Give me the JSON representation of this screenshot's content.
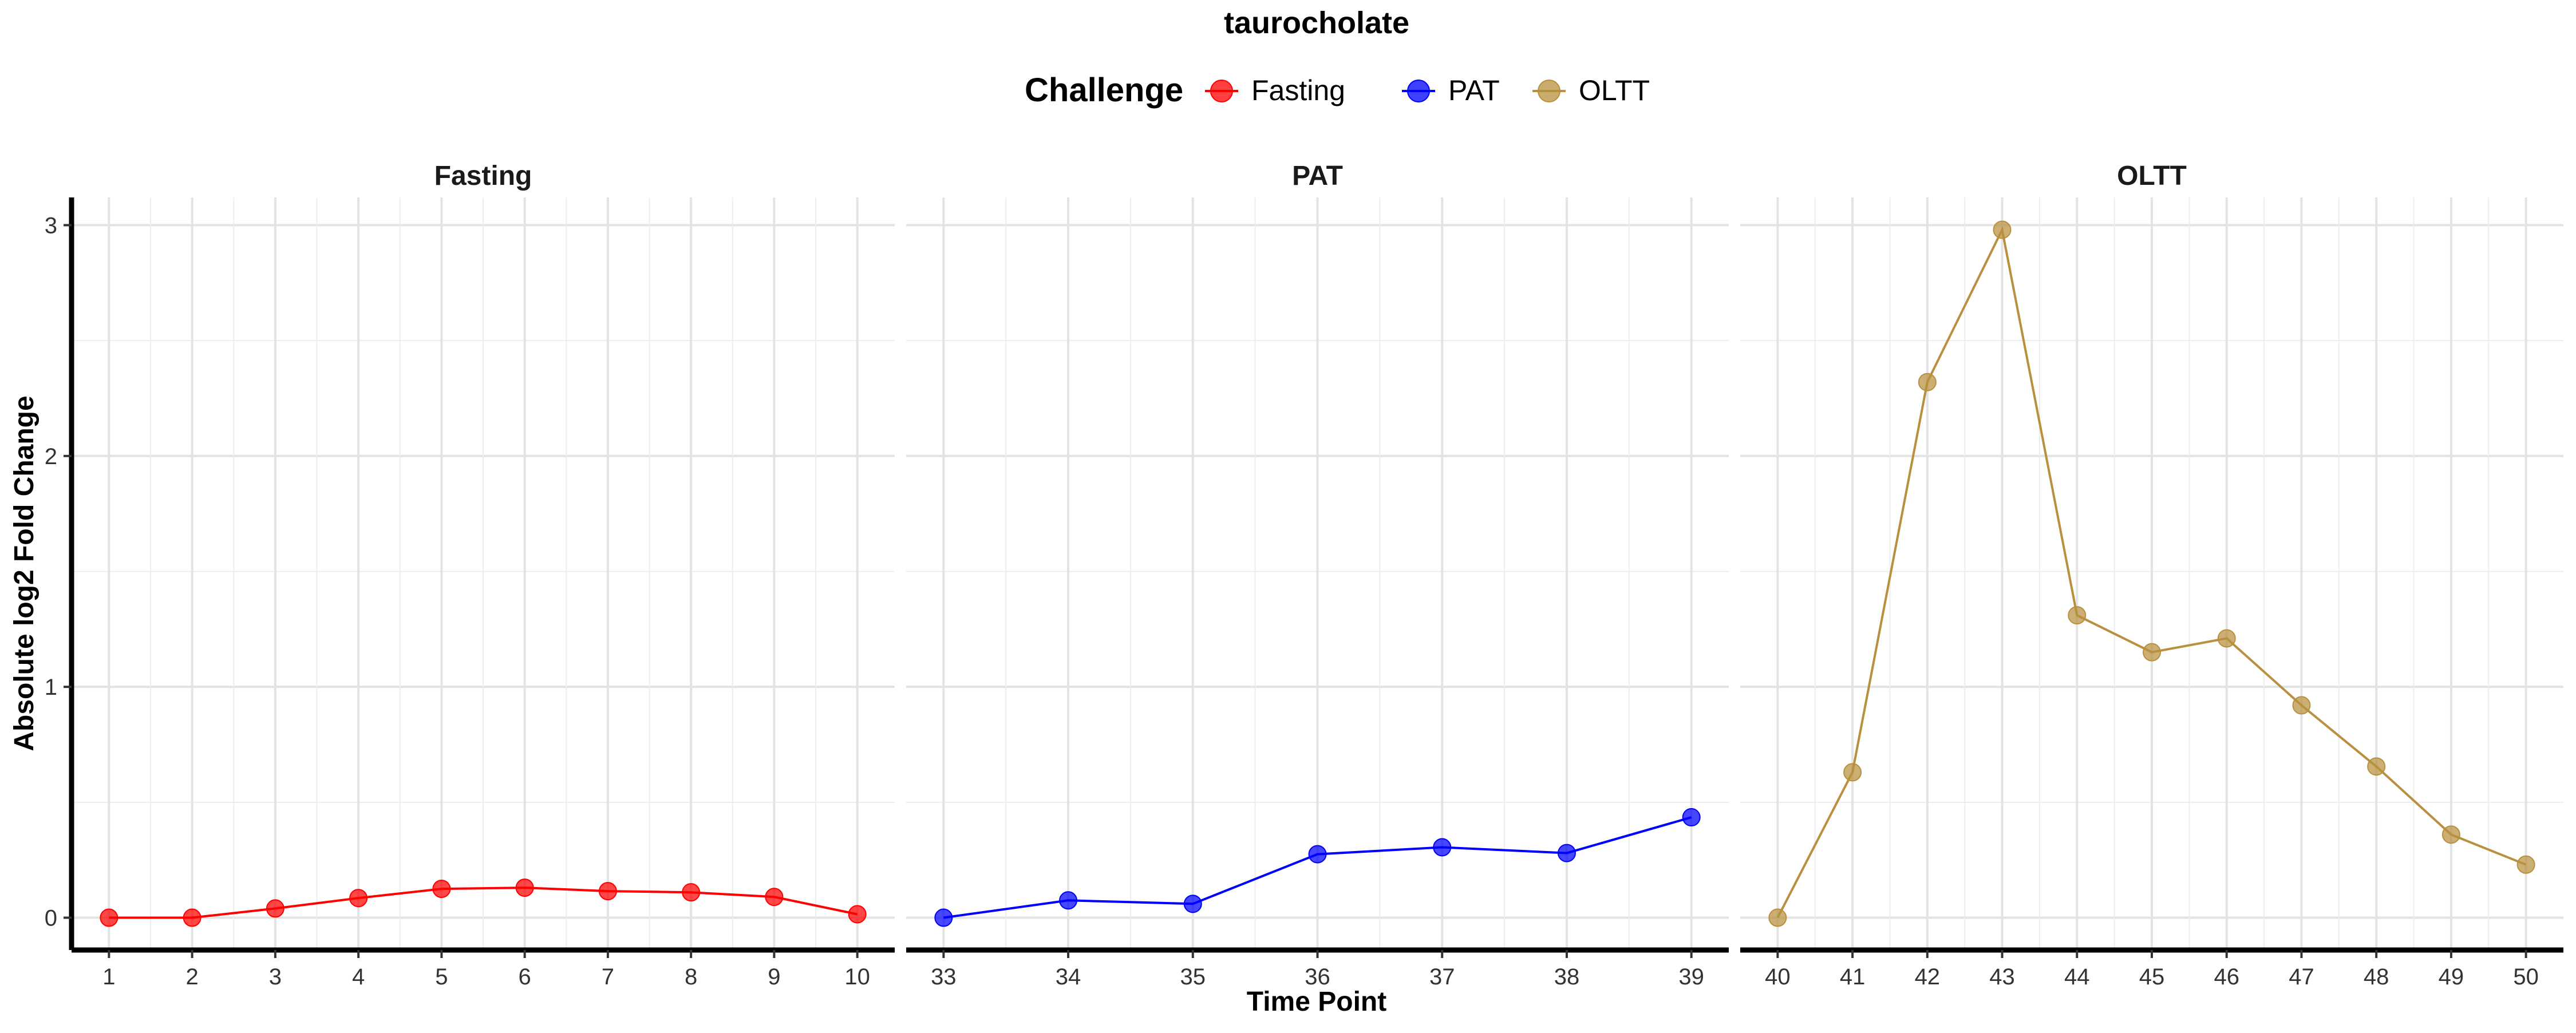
{
  "chart_data": {
    "type": "line",
    "title": "taurocholate",
    "xlabel": "Time Point",
    "ylabel": "Absolute log2 Fold Change",
    "ylim": [
      -0.14,
      3.12
    ],
    "yticks": [
      0,
      1,
      2,
      3
    ],
    "grid": true,
    "legend": {
      "title": "Challenge",
      "placement": "top",
      "entries": [
        {
          "label": "Fasting",
          "color": "#ff0000"
        },
        {
          "label": "PAT",
          "color": "#0000ff"
        },
        {
          "label": "OLTT",
          "color": "#b8903f"
        }
      ]
    },
    "panels": [
      {
        "strip": "Fasting",
        "color": "#ff0000",
        "xlim": [
          0.55,
          10.45
        ],
        "x": [
          1,
          2,
          3,
          4,
          5,
          6,
          7,
          8,
          9,
          10
        ],
        "y": [
          0.0,
          0.0,
          0.04,
          0.085,
          0.125,
          0.13,
          0.115,
          0.11,
          0.09,
          0.015
        ]
      },
      {
        "strip": "PAT",
        "color": "#0000ff",
        "xlim": [
          32.7,
          39.3
        ],
        "x": [
          33,
          34,
          35,
          36,
          37,
          38,
          39
        ],
        "y": [
          0.0,
          0.075,
          0.06,
          0.275,
          0.305,
          0.28,
          0.435
        ]
      },
      {
        "strip": "OLTT",
        "color": "#b8903f",
        "xlim": [
          39.5,
          50.5
        ],
        "x": [
          40,
          41,
          42,
          43,
          44,
          45,
          46,
          47,
          48,
          49,
          50
        ],
        "y": [
          0.0,
          0.63,
          2.32,
          2.98,
          1.31,
          1.15,
          1.21,
          0.92,
          0.655,
          0.36,
          0.23
        ]
      }
    ]
  }
}
